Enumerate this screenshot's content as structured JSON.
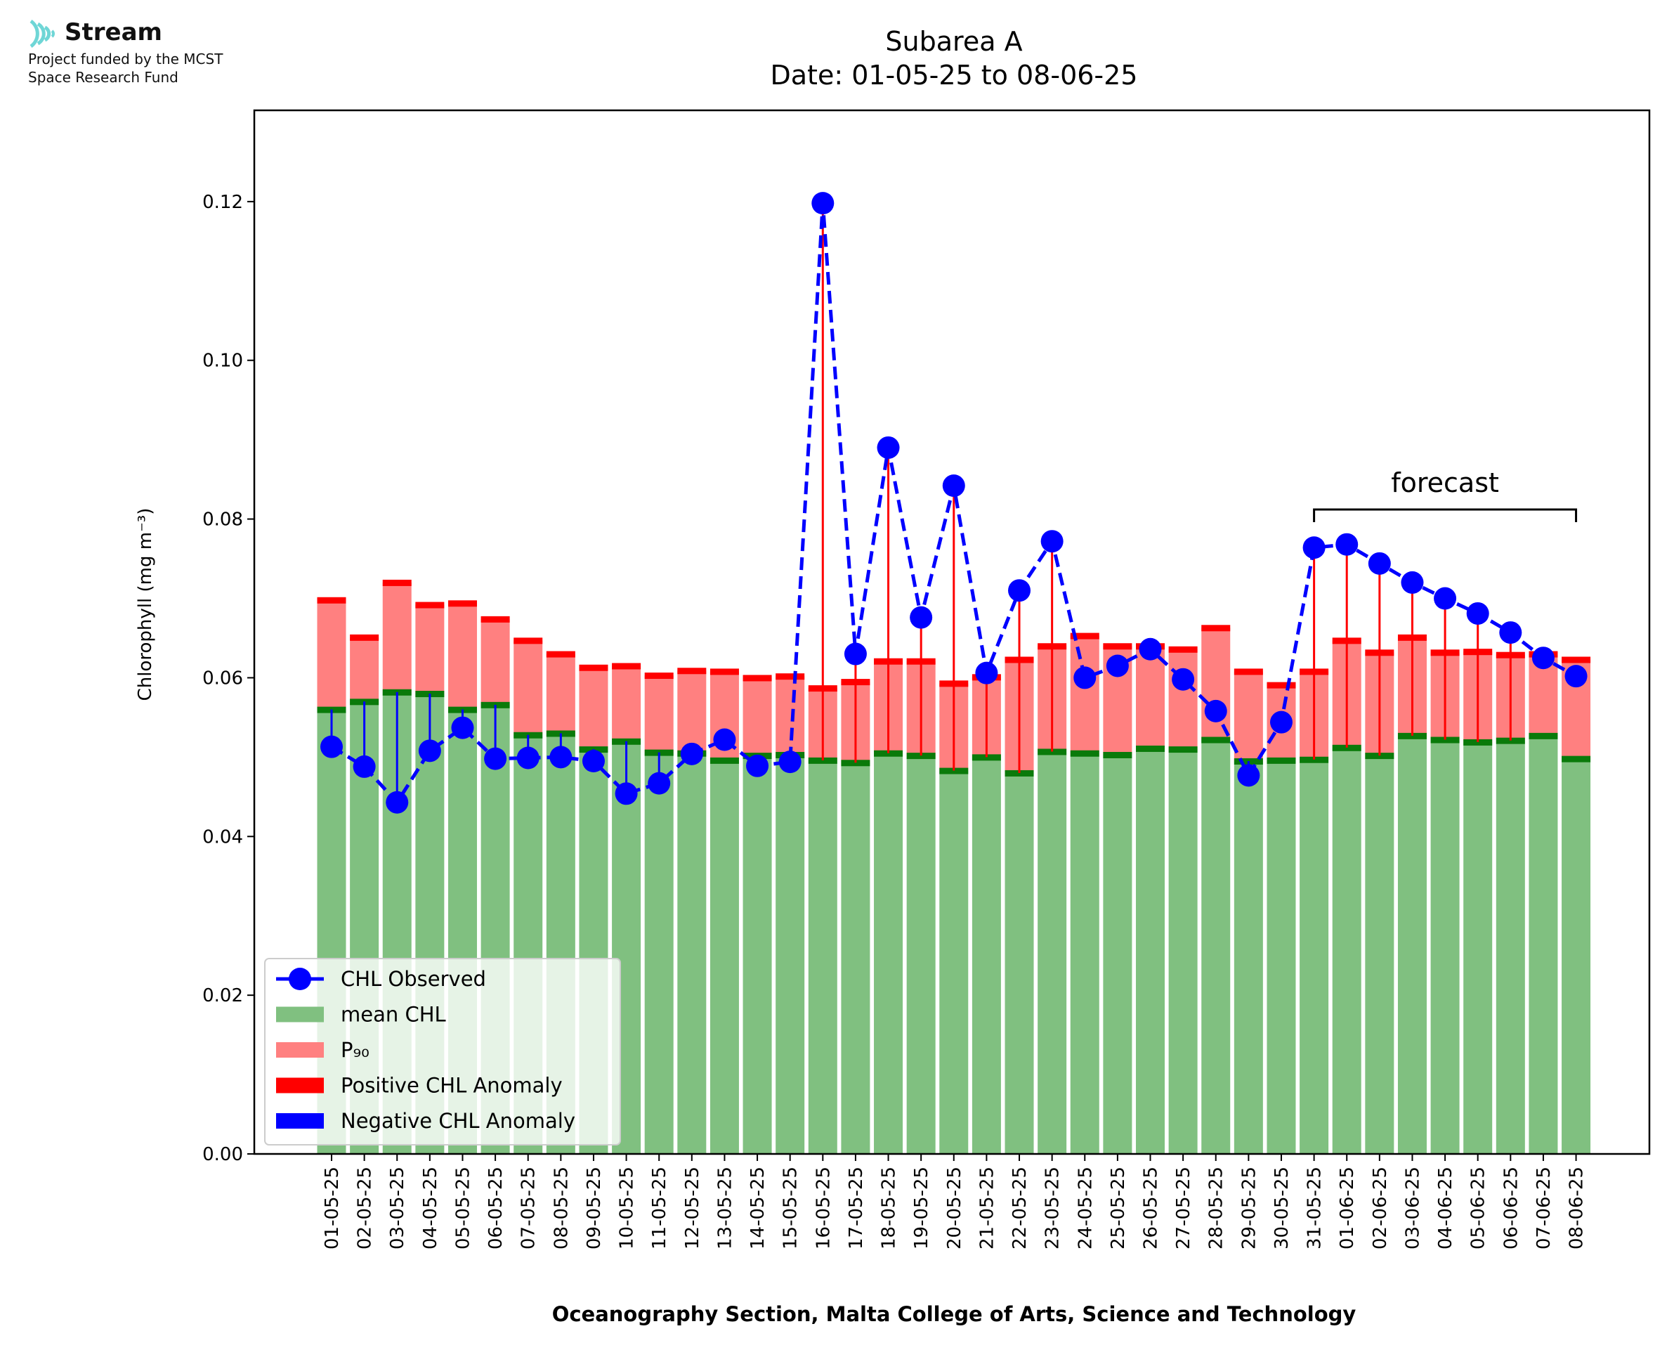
{
  "logo": {
    "name": "Stream",
    "icon": "wave-signal-icon",
    "funding_line1": "Project funded by the MCST",
    "funding_line2": "Space Research Fund"
  },
  "chart_data": {
    "type": "bar",
    "title": "Subarea A",
    "subtitle": "Date: 01-05-25 to 08-06-25",
    "xlabel": "Oceanography Section, Malta College of Arts, Science and Technology",
    "ylabel": "Chlorophyll (mg m⁻³)",
    "ylim": [
      0,
      0.1315
    ],
    "yticks": [
      "0.00",
      "0.02",
      "0.04",
      "0.06",
      "0.08",
      "0.10",
      "0.12"
    ],
    "categories": [
      "01-05-25",
      "02-05-25",
      "03-05-25",
      "04-05-25",
      "05-05-25",
      "06-05-25",
      "07-05-25",
      "08-05-25",
      "09-05-25",
      "10-05-25",
      "11-05-25",
      "12-05-25",
      "13-05-25",
      "14-05-25",
      "15-05-25",
      "16-05-25",
      "17-05-25",
      "18-05-25",
      "19-05-25",
      "20-05-25",
      "21-05-25",
      "22-05-25",
      "23-05-25",
      "24-05-25",
      "25-05-25",
      "26-05-25",
      "27-05-25",
      "28-05-25",
      "29-05-25",
      "30-05-25",
      "31-05-25",
      "01-06-25",
      "02-06-25",
      "03-06-25",
      "04-06-25",
      "05-06-25",
      "06-06-25",
      "07-06-25",
      "08-06-25"
    ],
    "series": [
      {
        "name": "mean CHL",
        "color": "#80c080",
        "values": [
          0.056,
          0.057,
          0.0582,
          0.058,
          0.056,
          0.0566,
          0.0528,
          0.053,
          0.051,
          0.052,
          0.0506,
          0.0505,
          0.0496,
          0.0502,
          0.0503,
          0.0496,
          0.0493,
          0.0505,
          0.0502,
          0.0483,
          0.05,
          0.048,
          0.0507,
          0.0505,
          0.0503,
          0.0511,
          0.051,
          0.0522,
          0.0495,
          0.0496,
          0.0497,
          0.0512,
          0.0502,
          0.0527,
          0.0522,
          0.0519,
          0.0521,
          0.0527,
          0.0498
        ]
      },
      {
        "name": "P₉₀",
        "color": "#ff8080",
        "values": [
          0.0698,
          0.0651,
          0.072,
          0.0692,
          0.0694,
          0.0674,
          0.0647,
          0.063,
          0.0613,
          0.0615,
          0.0603,
          0.0609,
          0.0608,
          0.06,
          0.0602,
          0.0587,
          0.0595,
          0.0621,
          0.0621,
          0.0593,
          0.0601,
          0.0623,
          0.064,
          0.0653,
          0.064,
          0.064,
          0.0636,
          0.0663,
          0.0608,
          0.0591,
          0.0608,
          0.0647,
          0.0632,
          0.0651,
          0.0632,
          0.0633,
          0.0629,
          0.063,
          0.0623
        ]
      },
      {
        "name": "CHL Observed",
        "color": "#0000ff",
        "values": [
          0.0513,
          0.0488,
          0.0443,
          0.0508,
          0.0537,
          0.0498,
          0.0499,
          0.05,
          0.0495,
          0.0454,
          0.0467,
          0.0504,
          0.0522,
          0.0489,
          0.0494,
          0.1198,
          0.063,
          0.089,
          0.0676,
          0.0842,
          0.0606,
          0.071,
          0.0772,
          0.06,
          0.0615,
          0.0636,
          0.0598,
          0.0558,
          0.0477,
          0.0544,
          0.0764,
          0.0768,
          0.0744,
          0.072,
          0.07,
          0.0681,
          0.0657,
          0.0625,
          0.0602
        ]
      }
    ],
    "legend": {
      "position": "lower-left",
      "entries": [
        {
          "label": "CHL Observed",
          "color": "#0000ff"
        },
        {
          "label": "mean CHL",
          "color": "#80c080"
        },
        {
          "label": "P₉₀",
          "color": "#ff8080"
        },
        {
          "label": "Positive CHL Anomaly",
          "color": "#ff0000"
        },
        {
          "label": "Negative CHL Anomaly",
          "color": "#0000ff"
        }
      ]
    },
    "annotation": {
      "text": "forecast",
      "from": "31-05-25",
      "to": "08-06-25"
    }
  }
}
